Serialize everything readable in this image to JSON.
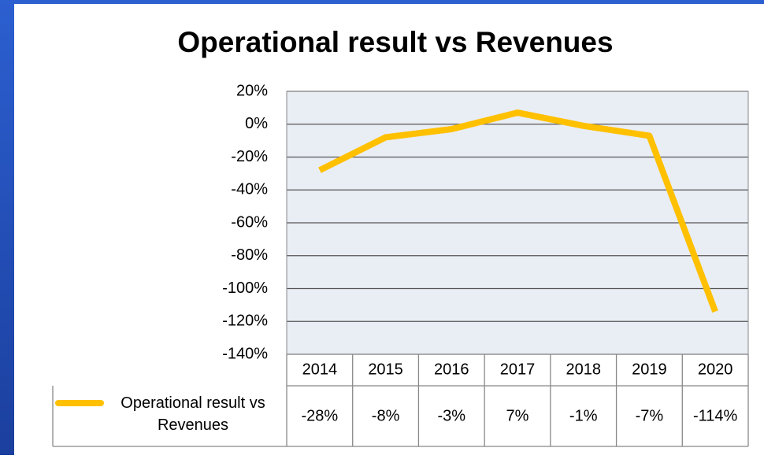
{
  "chart_data": {
    "type": "line",
    "title": "Operational result vs Revenues",
    "categories": [
      "2014",
      "2015",
      "2016",
      "2017",
      "2018",
      "2019",
      "2020"
    ],
    "series": [
      {
        "name": "Operational result vs Revenues",
        "color": "#ffc000",
        "values": [
          -28,
          -8,
          -3,
          7,
          -1,
          -7,
          -114
        ],
        "value_labels": [
          "-28%",
          "-8%",
          "-3%",
          "7%",
          "-1%",
          "-7%",
          "-114%"
        ]
      }
    ],
    "ylim": [
      -140,
      20
    ],
    "yticks": [
      {
        "value": 20,
        "label": "20%"
      },
      {
        "value": 0,
        "label": "0%"
      },
      {
        "value": -20,
        "label": "-20%"
      },
      {
        "value": -40,
        "label": "-40%"
      },
      {
        "value": -60,
        "label": "-60%"
      },
      {
        "value": -80,
        "label": "-80%"
      },
      {
        "value": -100,
        "label": "-100%"
      },
      {
        "value": -120,
        "label": "-120%"
      },
      {
        "value": -140,
        "label": "-140%"
      }
    ],
    "grid": true
  }
}
